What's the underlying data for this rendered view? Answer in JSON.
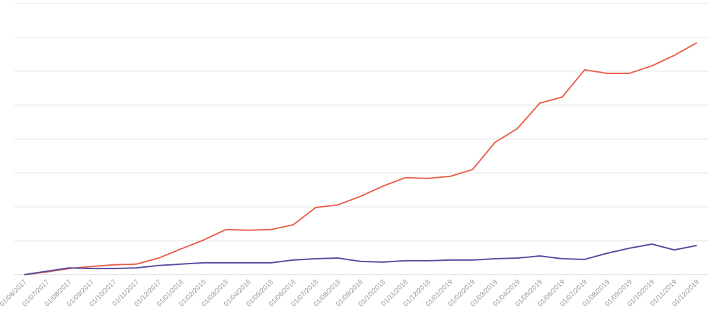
{
  "chart_data": {
    "type": "line",
    "title": "",
    "xlabel": "",
    "ylabel": "",
    "ylim": [
      0,
      8
    ],
    "grid": true,
    "legend": "none",
    "categories": [
      "01/06/2017",
      "01/07/2017",
      "01/08/2017",
      "01/09/2017",
      "01/10/2017",
      "01/11/2017",
      "01/12/2017",
      "01/01/2018",
      "01/02/2018",
      "01/03/2018",
      "01/04/2018",
      "01/05/2018",
      "01/06/2018",
      "01/07/2018",
      "01/08/2018",
      "01/09/2018",
      "01/10/2018",
      "01/11/2018",
      "01/12/2018",
      "01/01/2019",
      "01/02/2019",
      "01/03/2019",
      "01/04/2019",
      "01/05/2019",
      "01/06/2019",
      "01/07/2019",
      "01/08/2019",
      "01/09/2019",
      "01/10/2019",
      "01/11/2019",
      "01/12/2019"
    ],
    "series": [
      {
        "color": "#e8604c",
        "values": [
          0,
          0.08,
          0.18,
          0.24,
          0.29,
          0.31,
          0.49,
          0.76,
          1.02,
          1.33,
          1.31,
          1.33,
          1.47,
          1.98,
          2.06,
          2.31,
          2.61,
          2.86,
          2.84,
          2.9,
          3.1,
          3.9,
          4.31,
          5.06,
          5.24,
          6.04,
          5.94,
          5.94,
          6.16,
          6.47,
          6.84
        ]
      },
      {
        "color": "#5b4aa0",
        "values": [
          0,
          0.1,
          0.2,
          0.18,
          0.18,
          0.2,
          0.27,
          0.31,
          0.35,
          0.35,
          0.35,
          0.35,
          0.43,
          0.47,
          0.49,
          0.39,
          0.37,
          0.41,
          0.41,
          0.43,
          0.43,
          0.47,
          0.49,
          0.55,
          0.47,
          0.45,
          0.63,
          0.78,
          0.9,
          0.73,
          0.86
        ]
      }
    ]
  }
}
